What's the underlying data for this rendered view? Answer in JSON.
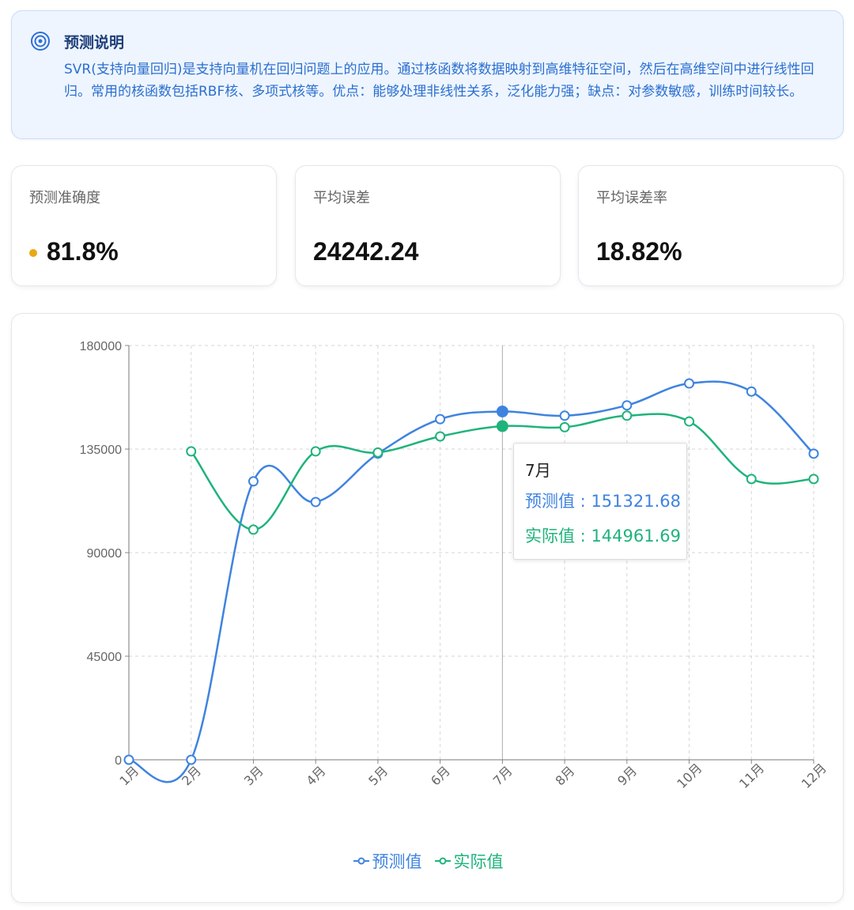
{
  "info": {
    "title": "预测说明",
    "text": "SVR(支持向量回归)是支持向量机在回归问题上的应用。通过核函数将数据映射到高维特征空间，然后在高维空间中进行线性回归。常用的核函数包括RBF核、多项式核等。优点：能够处理非线性关系，泛化能力强；缺点：对参数敏感，训练时间较长。",
    "icon": "target-icon"
  },
  "metrics": {
    "accuracy": {
      "label": "预测准确度",
      "value": "81.8%",
      "dot_color": "#e9a915"
    },
    "mean_error": {
      "label": "平均误差",
      "value": "24242.24"
    },
    "mean_error_rate": {
      "label": "平均误差率",
      "value": "18.82%"
    }
  },
  "colors": {
    "predicted": "#3f83e0",
    "actual": "#1fb37b"
  },
  "tooltip": {
    "month": "7月",
    "pred_label": "预测值",
    "pred_value": "151321.68",
    "actual_label": "实际值",
    "actual_value": "144961.69"
  },
  "chart_data": {
    "type": "line",
    "smooth": true,
    "categories": [
      "1月",
      "2月",
      "3月",
      "4月",
      "5月",
      "6月",
      "7月",
      "8月",
      "9月",
      "10月",
      "11月",
      "12月"
    ],
    "series": [
      {
        "name": "预测值",
        "values": [
          0,
          0,
          121000,
          112000,
          133000,
          148000,
          151321.68,
          149500,
          154000,
          163500,
          160000,
          133000
        ]
      },
      {
        "name": "实际值",
        "values": [
          null,
          134000,
          100000,
          134000,
          133500,
          140500,
          144961.69,
          144500,
          149500,
          147000,
          122000,
          122000
        ]
      }
    ],
    "ylim": [
      0,
      180000
    ],
    "yticks": [
      0,
      45000,
      90000,
      135000,
      180000
    ],
    "grid": true,
    "highlight_index": 6,
    "legend_position": "bottom"
  }
}
